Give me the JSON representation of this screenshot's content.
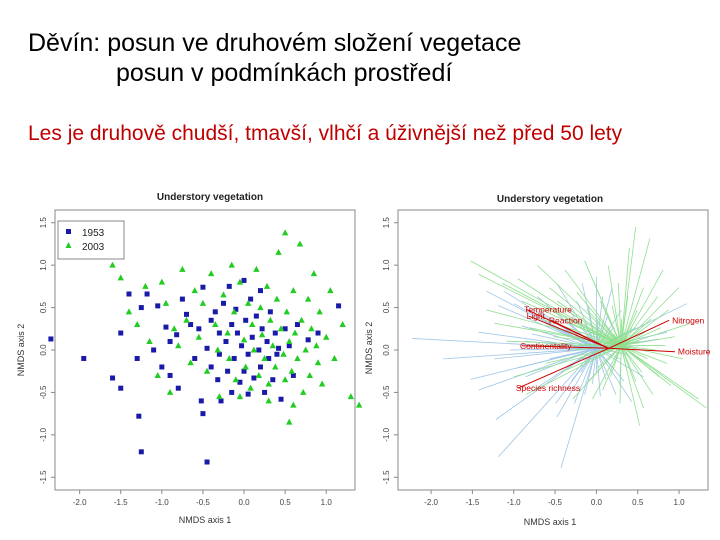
{
  "slide": {
    "title_line1": "Děvín: posun ve druhovém složení vegetace",
    "title_line2": "posun v podmínkách prostředí",
    "subtitle": "Les je druhově chudší, tmavší, vlhčí a úživnější než před 50 lety"
  },
  "chart_data": [
    {
      "type": "scatter",
      "title": "Understory vegetation",
      "xlabel": "NMDS axis 1",
      "ylabel": "NMDS axis 2",
      "xlim": [
        -2.3,
        1.35
      ],
      "ylim": [
        -1.65,
        1.65
      ],
      "x_ticks": [
        "-2.0",
        "-1.5",
        "-1.0",
        "-0.5",
        "0.0",
        "0.5",
        "1.0"
      ],
      "y_ticks": [
        "-1.5",
        "-1.0",
        "-0.5",
        "0.0",
        "0.5",
        "1.0",
        "1.5"
      ],
      "legend_position": "top-left",
      "series": [
        {
          "name": "1953",
          "marker": "square",
          "color": "#1a1aa8",
          "points": [
            [
              -2.35,
              0.13
            ],
            [
              -1.95,
              -0.1
            ],
            [
              -1.6,
              -0.33
            ],
            [
              -1.5,
              -0.45
            ],
            [
              -1.5,
              0.2
            ],
            [
              -1.4,
              0.66
            ],
            [
              -1.3,
              -0.1
            ],
            [
              -1.28,
              -0.78
            ],
            [
              -1.25,
              0.5
            ],
            [
              -1.25,
              -1.2
            ],
            [
              -1.18,
              0.66
            ],
            [
              -1.1,
              0.0
            ],
            [
              -1.05,
              0.52
            ],
            [
              -1.0,
              -0.2
            ],
            [
              -0.95,
              0.27
            ],
            [
              -0.9,
              0.1
            ],
            [
              -0.9,
              -0.3
            ],
            [
              -0.82,
              0.18
            ],
            [
              -0.8,
              -0.45
            ],
            [
              -0.75,
              0.6
            ],
            [
              -0.7,
              0.42
            ],
            [
              -0.65,
              0.3
            ],
            [
              -0.6,
              -0.1
            ],
            [
              -0.55,
              0.25
            ],
            [
              -0.52,
              -0.6
            ],
            [
              -0.5,
              0.74
            ],
            [
              -0.5,
              -0.75
            ],
            [
              -0.45,
              0.02
            ],
            [
              -0.45,
              -1.32
            ],
            [
              -0.4,
              0.35
            ],
            [
              -0.4,
              -0.2
            ],
            [
              -0.35,
              0.45
            ],
            [
              -0.32,
              -0.35
            ],
            [
              -0.3,
              0.2
            ],
            [
              -0.3,
              -0.05
            ],
            [
              -0.28,
              -0.6
            ],
            [
              -0.25,
              0.55
            ],
            [
              -0.22,
              0.1
            ],
            [
              -0.2,
              -0.25
            ],
            [
              -0.18,
              0.75
            ],
            [
              -0.15,
              0.3
            ],
            [
              -0.15,
              -0.5
            ],
            [
              -0.12,
              -0.1
            ],
            [
              -0.1,
              0.48
            ],
            [
              -0.08,
              0.2
            ],
            [
              -0.05,
              -0.38
            ],
            [
              -0.03,
              0.05
            ],
            [
              0.0,
              0.82
            ],
            [
              0.0,
              -0.25
            ],
            [
              0.02,
              0.35
            ],
            [
              0.05,
              -0.05
            ],
            [
              0.05,
              -0.52
            ],
            [
              0.08,
              0.6
            ],
            [
              0.1,
              0.15
            ],
            [
              0.12,
              -0.33
            ],
            [
              0.15,
              0.4
            ],
            [
              0.18,
              0.0
            ],
            [
              0.2,
              -0.2
            ],
            [
              0.2,
              0.7
            ],
            [
              0.22,
              0.25
            ],
            [
              0.25,
              -0.5
            ],
            [
              0.28,
              0.1
            ],
            [
              0.3,
              -0.1
            ],
            [
              0.32,
              0.45
            ],
            [
              0.35,
              -0.35
            ],
            [
              0.38,
              0.2
            ],
            [
              0.4,
              -0.05
            ],
            [
              0.42,
              0.02
            ],
            [
              0.45,
              -0.58
            ],
            [
              0.5,
              0.25
            ],
            [
              0.55,
              0.05
            ],
            [
              0.6,
              -0.3
            ],
            [
              0.65,
              0.3
            ],
            [
              0.78,
              0.12
            ],
            [
              0.9,
              0.2
            ],
            [
              1.15,
              0.52
            ]
          ]
        },
        {
          "name": "2003",
          "marker": "triangle",
          "color": "#22cc22",
          "points": [
            [
              -1.6,
              1.0
            ],
            [
              -1.5,
              0.85
            ],
            [
              -1.4,
              0.45
            ],
            [
              -1.3,
              0.3
            ],
            [
              -1.2,
              0.75
            ],
            [
              -1.15,
              0.1
            ],
            [
              -1.05,
              -0.3
            ],
            [
              -1.0,
              0.8
            ],
            [
              -0.95,
              0.55
            ],
            [
              -0.9,
              -0.5
            ],
            [
              -0.85,
              0.25
            ],
            [
              -0.8,
              0.05
            ],
            [
              -0.75,
              0.95
            ],
            [
              -0.7,
              0.35
            ],
            [
              -0.65,
              -0.15
            ],
            [
              -0.6,
              0.7
            ],
            [
              -0.55,
              0.15
            ],
            [
              -0.5,
              0.55
            ],
            [
              -0.45,
              -0.25
            ],
            [
              -0.4,
              0.9
            ],
            [
              -0.35,
              0.3
            ],
            [
              -0.32,
              0.0
            ],
            [
              -0.3,
              -0.55
            ],
            [
              -0.25,
              0.65
            ],
            [
              -0.2,
              0.2
            ],
            [
              -0.18,
              -0.1
            ],
            [
              -0.15,
              1.0
            ],
            [
              -0.12,
              0.45
            ],
            [
              -0.1,
              -0.35
            ],
            [
              -0.05,
              0.8
            ],
            [
              0.0,
              0.12
            ],
            [
              0.02,
              -0.2
            ],
            [
              0.05,
              0.55
            ],
            [
              0.08,
              -0.45
            ],
            [
              0.1,
              0.3
            ],
            [
              0.12,
              0.0
            ],
            [
              0.15,
              0.95
            ],
            [
              0.18,
              -0.3
            ],
            [
              0.2,
              0.5
            ],
            [
              0.22,
              0.18
            ],
            [
              0.25,
              -0.1
            ],
            [
              0.28,
              0.75
            ],
            [
              0.3,
              -0.4
            ],
            [
              0.32,
              0.35
            ],
            [
              0.35,
              0.05
            ],
            [
              0.38,
              -0.2
            ],
            [
              0.4,
              0.6
            ],
            [
              0.42,
              1.15
            ],
            [
              0.45,
              0.25
            ],
            [
              0.48,
              -0.05
            ],
            [
              0.5,
              -0.35
            ],
            [
              0.5,
              1.38
            ],
            [
              0.52,
              0.45
            ],
            [
              0.55,
              0.1
            ],
            [
              0.58,
              -0.25
            ],
            [
              0.6,
              0.7
            ],
            [
              0.62,
              0.2
            ],
            [
              0.65,
              -0.1
            ],
            [
              0.68,
              1.25
            ],
            [
              0.7,
              0.35
            ],
            [
              0.72,
              -0.5
            ],
            [
              0.75,
              0.0
            ],
            [
              0.78,
              0.6
            ],
            [
              0.8,
              -0.3
            ],
            [
              0.82,
              0.25
            ],
            [
              0.85,
              0.9
            ],
            [
              0.88,
              0.05
            ],
            [
              0.9,
              -0.15
            ],
            [
              0.92,
              0.45
            ],
            [
              0.95,
              -0.4
            ],
            [
              1.0,
              0.15
            ],
            [
              1.05,
              0.7
            ],
            [
              1.1,
              -0.1
            ],
            [
              1.2,
              0.3
            ],
            [
              1.3,
              -0.55
            ],
            [
              1.4,
              -0.65
            ],
            [
              0.55,
              -0.85
            ],
            [
              0.3,
              -0.6
            ],
            [
              -0.05,
              -0.55
            ],
            [
              0.6,
              -0.65
            ]
          ]
        }
      ]
    },
    {
      "type": "scatter",
      "title": "Understory vegetation",
      "xlabel": "NMDS axis 1",
      "ylabel": "NMDS axis 2",
      "xlim": [
        -2.4,
        1.35
      ],
      "ylim": [
        -1.65,
        1.65
      ],
      "x_ticks": [
        "-2.0",
        "-1.5",
        "-1.0",
        "-0.5",
        "0.0",
        "0.5",
        "1.0"
      ],
      "y_ticks": [
        "-1.5",
        "-1.0",
        "-0.5",
        "0.0",
        "0.5",
        "1.0",
        "1.5"
      ],
      "note": "biplot: plot scores connected to group centroids (1953 blue, 2003 green), environmental vectors in red",
      "centroids": {
        "1953": [
          0.0,
          0.02
        ],
        "2003": [
          0.3,
          0.05
        ]
      },
      "vectors": [
        {
          "label": "Temperature",
          "x": -0.85,
          "y": 0.48
        },
        {
          "label": "Light",
          "x": -0.82,
          "y": 0.4
        },
        {
          "label": "Reaction",
          "x": -0.55,
          "y": 0.35
        },
        {
          "label": "Continentality",
          "x": -0.9,
          "y": 0.05
        },
        {
          "label": "Species richness",
          "x": -0.95,
          "y": -0.45
        },
        {
          "label": "Nitrogen",
          "x": 0.88,
          "y": 0.35
        },
        {
          "label": "Moisture",
          "x": 0.95,
          "y": -0.02
        }
      ]
    }
  ]
}
